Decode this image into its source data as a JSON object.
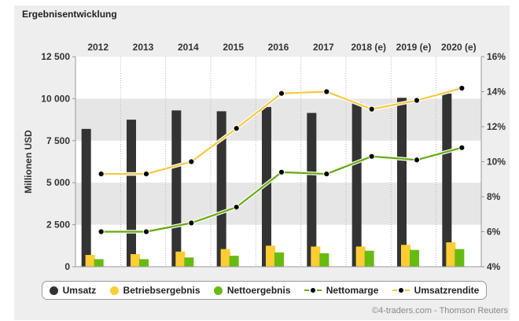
{
  "title": "Ergebnisentwicklung",
  "source": "©4-traders.com - Thomson Reuters",
  "colors": {
    "umsatz": "#333333",
    "betriebsergebnis": "#FFCC33",
    "nettoergebnis": "#66BB11",
    "nettomarge": "#66AA11",
    "umsatzrendite": "#F5C842",
    "band": "#e6e6e6",
    "plot_bg": "#ffffff"
  },
  "chart_data": {
    "type": "bar",
    "categories": [
      "2012",
      "2013",
      "2014",
      "2015",
      "2016",
      "2017",
      "2018 (e)",
      "2019 (e)",
      "2020 (e)"
    ],
    "ylabel": "Millionen USD",
    "ylim": [
      0,
      12500
    ],
    "yticks": [
      0,
      2500,
      5000,
      7500,
      10000,
      12500
    ],
    "ytick_labels": [
      "0",
      "2 500",
      "5 000",
      "7 500",
      "10 000",
      "12 500"
    ],
    "y2lim": [
      4,
      16
    ],
    "y2ticks": [
      4,
      6,
      8,
      10,
      12,
      14,
      16
    ],
    "y2tick_labels": [
      "4%",
      "6%",
      "8%",
      "10%",
      "12%",
      "14%",
      "16%"
    ],
    "legend_position": "bottom",
    "series": [
      {
        "name": "Umsatz",
        "kind": "bar",
        "axis": "left",
        "values": [
          8200,
          8750,
          9300,
          9250,
          9500,
          9150,
          9750,
          10050,
          10300
        ]
      },
      {
        "name": "Betriebsergebnis",
        "kind": "bar",
        "axis": "left",
        "values": [
          700,
          750,
          900,
          1050,
          1250,
          1200,
          1200,
          1300,
          1450
        ]
      },
      {
        "name": "Nettoergebnis",
        "kind": "bar",
        "axis": "left",
        "values": [
          450,
          450,
          550,
          650,
          850,
          800,
          950,
          1000,
          1050
        ]
      },
      {
        "name": "Nettomarge",
        "kind": "line",
        "axis": "right",
        "values": [
          6.0,
          6.0,
          6.5,
          7.4,
          9.4,
          9.3,
          10.3,
          10.1,
          10.8
        ]
      },
      {
        "name": "Umsatzrendite",
        "kind": "line",
        "axis": "right",
        "values": [
          9.3,
          9.3,
          10.0,
          11.9,
          13.9,
          14.0,
          13.0,
          13.5,
          14.2
        ]
      }
    ]
  }
}
